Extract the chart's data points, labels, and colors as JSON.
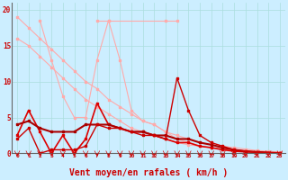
{
  "background_color": "#cceeff",
  "grid_color": "#aadddd",
  "xlabel": "Vent moyen/en rafales ( km/h )",
  "xlabel_color": "#cc0000",
  "xlabel_fontsize": 7,
  "tick_color": "#cc0000",
  "ylim": [
    0,
    21
  ],
  "xlim": [
    -0.5,
    23.5
  ],
  "yticks": [
    0,
    5,
    10,
    15,
    20
  ],
  "xticks": [
    0,
    1,
    2,
    3,
    4,
    5,
    6,
    7,
    8,
    9,
    10,
    11,
    12,
    13,
    14,
    15,
    16,
    17,
    18,
    19,
    20,
    21,
    22,
    23
  ],
  "lines": [
    {
      "x": [
        0,
        1,
        2,
        3,
        4,
        5,
        6,
        7,
        8,
        9,
        10,
        11,
        12,
        13,
        14,
        15,
        16,
        17,
        18,
        19,
        20,
        21,
        22,
        23
      ],
      "y": [
        19,
        17.5,
        16,
        14.5,
        13,
        11.5,
        10,
        9,
        7.5,
        6.5,
        5.5,
        4.5,
        4,
        3,
        2.5,
        2,
        1.5,
        1.2,
        1,
        0.8,
        0.6,
        0.4,
        0.3,
        0.2
      ],
      "color": "#ffaaaa",
      "linewidth": 0.8,
      "marker": "s",
      "markersize": 1.5
    },
    {
      "x": [
        0,
        1,
        2,
        3,
        4,
        5,
        6,
        7,
        8,
        9,
        10,
        11,
        12,
        13,
        14,
        15,
        16,
        17,
        18,
        19,
        20,
        21,
        22,
        23
      ],
      "y": [
        16,
        15,
        13.5,
        12,
        10.5,
        9,
        7.5,
        6.5,
        5.5,
        4.5,
        3.5,
        3,
        2.5,
        2,
        1.5,
        1.2,
        1,
        0.8,
        0.6,
        0.5,
        0.4,
        0.3,
        0.2,
        0.1
      ],
      "color": "#ffaaaa",
      "linewidth": 0.8,
      "marker": "s",
      "markersize": 1.5
    },
    {
      "x": [
        2,
        3,
        4,
        5,
        6,
        7,
        8,
        9,
        10,
        11,
        12,
        13,
        14,
        15,
        16,
        17,
        18,
        19,
        20,
        21,
        22,
        23
      ],
      "y": [
        18.5,
        13,
        8,
        5,
        5,
        13,
        18.5,
        13,
        6,
        4.5,
        4,
        3,
        2,
        1.5,
        1,
        0.8,
        0.6,
        0.4,
        0.3,
        0.2,
        0.1,
        0.05
      ],
      "color": "#ffaaaa",
      "linewidth": 0.8,
      "marker": "s",
      "markersize": 1.5
    },
    {
      "x": [
        7,
        8,
        13,
        14
      ],
      "y": [
        18.5,
        18.5,
        18.5,
        18.5
      ],
      "color": "#ffaaaa",
      "linewidth": 0.8,
      "marker": "s",
      "markersize": 1.5
    },
    {
      "x": [
        0,
        1,
        2,
        3,
        4,
        5,
        6,
        7,
        8,
        9,
        10,
        11,
        12,
        13,
        14,
        15,
        16,
        17,
        18,
        19,
        20,
        21,
        22,
        23
      ],
      "y": [
        2.5,
        6,
        3,
        0,
        2.5,
        0,
        2,
        7,
        4,
        3.5,
        3,
        3,
        2.5,
        2,
        1.5,
        1.5,
        1,
        0.8,
        0.5,
        0.3,
        0.2,
        0.15,
        0.1,
        0.05
      ],
      "color": "#dd0000",
      "linewidth": 1.2,
      "marker": "s",
      "markersize": 2.0
    },
    {
      "x": [
        0,
        1,
        2,
        3,
        4,
        5,
        6,
        7,
        8,
        9,
        10,
        11,
        12,
        13,
        14,
        15,
        16,
        17,
        18,
        19,
        20,
        21,
        22,
        23
      ],
      "y": [
        4,
        4.5,
        3.5,
        3,
        3,
        3,
        4,
        4,
        4,
        3.5,
        3,
        3,
        2.5,
        2.5,
        2,
        2,
        1.5,
        1.2,
        0.8,
        0.5,
        0.3,
        0.2,
        0.1,
        0.05
      ],
      "color": "#aa0000",
      "linewidth": 1.5,
      "marker": "s",
      "markersize": 2.0
    },
    {
      "x": [
        0,
        1,
        2,
        3,
        4,
        5,
        6,
        7,
        8,
        9,
        10,
        11,
        12,
        13,
        14,
        15,
        16,
        17,
        18,
        19,
        20,
        21,
        22,
        23
      ],
      "y": [
        2,
        3.5,
        0,
        0.5,
        0.5,
        0.5,
        1,
        4,
        3.5,
        3.5,
        3,
        2.5,
        2.5,
        2,
        10.5,
        6,
        2.5,
        1.5,
        1,
        0.5,
        0.3,
        0.15,
        0.1,
        0.05
      ],
      "color": "#cc0000",
      "linewidth": 1.0,
      "marker": "s",
      "markersize": 1.8
    }
  ],
  "arrow_color": "#cc0000"
}
